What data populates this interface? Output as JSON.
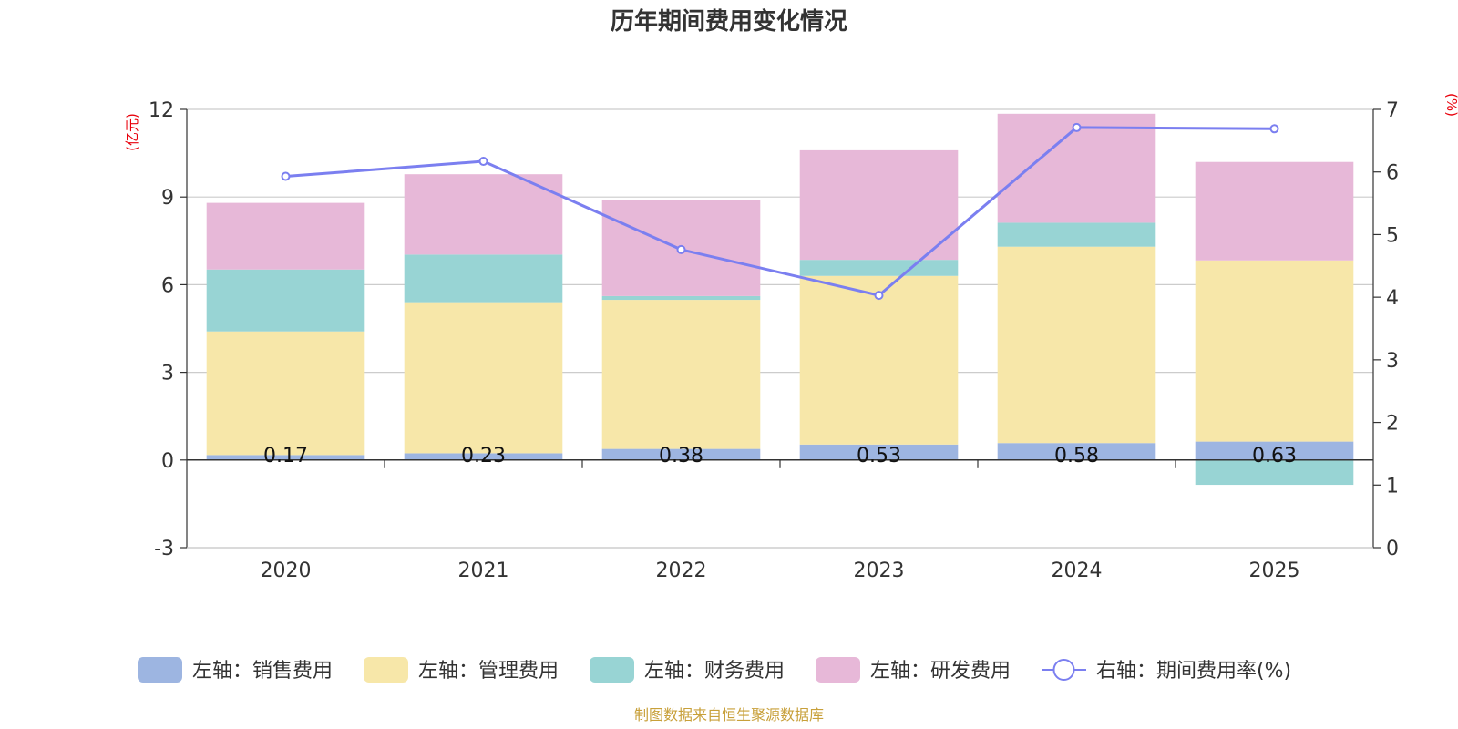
{
  "chart_data": {
    "type": "bar",
    "title": "历年期间费用变化情况",
    "categories": [
      "2020",
      "2021",
      "2022",
      "2023",
      "2024",
      "2025"
    ],
    "left_axis": {
      "unit": "(亿元)",
      "min": -3,
      "max": 12,
      "ticks": [
        -3,
        0,
        3,
        6,
        9,
        12
      ]
    },
    "right_axis": {
      "unit": "(%)",
      "min": 0,
      "max": 7,
      "ticks": [
        0,
        1,
        2,
        3,
        4,
        5,
        6,
        7
      ]
    },
    "series": [
      {
        "name": "左轴：销售费用",
        "type": "bar",
        "axis": "left",
        "color": "#9db5e1",
        "values": [
          0.17,
          0.23,
          0.38,
          0.53,
          0.58,
          0.63
        ],
        "labels": [
          "0.17",
          "0.23",
          "0.38",
          "0.53",
          "0.58",
          "0.63"
        ]
      },
      {
        "name": "左轴：管理费用",
        "type": "bar",
        "axis": "left",
        "color": "#f7e7a9",
        "values": [
          4.23,
          5.17,
          5.1,
          5.77,
          6.72,
          6.2
        ]
      },
      {
        "name": "左轴：财务费用",
        "type": "bar",
        "axis": "left",
        "color": "#98d4d4",
        "values": [
          2.12,
          1.63,
          0.13,
          0.55,
          0.82,
          -0.85
        ]
      },
      {
        "name": "左轴：研发费用",
        "type": "bar",
        "axis": "left",
        "color": "#e7b8d8",
        "values": [
          2.28,
          2.75,
          3.29,
          3.75,
          3.73,
          3.37
        ]
      },
      {
        "name": "右轴：期间费用率(%)",
        "type": "line",
        "axis": "right",
        "color": "#7b7ff0",
        "values": [
          5.93,
          6.17,
          4.76,
          4.03,
          6.71,
          6.69
        ]
      }
    ],
    "grid": true,
    "legend": "bottom"
  },
  "footer": {
    "source": "制图数据来自恒生聚源数据库"
  }
}
